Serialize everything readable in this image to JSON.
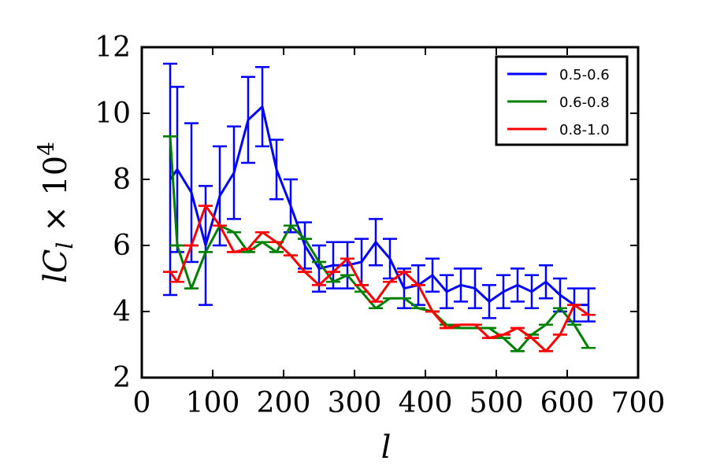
{
  "chart_data": {
    "type": "line",
    "title": "",
    "xlabel": "l",
    "ylabel": "lC_l × 10^4",
    "ylabel_parts": {
      "main": "lC",
      "sub": "l",
      "times": " × 10",
      "sup": "4"
    },
    "xlim": [
      0,
      700
    ],
    "ylim": [
      2,
      12
    ],
    "x_ticks": [
      0,
      100,
      200,
      300,
      400,
      500,
      600,
      700
    ],
    "y_ticks": [
      2,
      4,
      6,
      8,
      10,
      12
    ],
    "grid": false,
    "legend_position": "top-right",
    "x": [
      40,
      50,
      70,
      90,
      110,
      130,
      150,
      170,
      190,
      210,
      230,
      250,
      270,
      290,
      310,
      330,
      350,
      370,
      390,
      410,
      430,
      450,
      470,
      490,
      510,
      530,
      550,
      570,
      590,
      610,
      630
    ],
    "series": [
      {
        "name": "0.5-0.6",
        "color": "#0000ff",
        "x": [
          40,
          50,
          70,
          90,
          110,
          130,
          150,
          170,
          190,
          210,
          230,
          250,
          270,
          290,
          310,
          330,
          350,
          370,
          390,
          410,
          430,
          450,
          470,
          490,
          510,
          530,
          550,
          570,
          590,
          610,
          630
        ],
        "values": [
          8.0,
          8.3,
          7.6,
          6.0,
          7.5,
          8.2,
          9.8,
          10.2,
          8.3,
          7.2,
          6.0,
          5.3,
          5.4,
          5.4,
          5.5,
          6.1,
          5.6,
          4.7,
          4.8,
          5.1,
          4.6,
          4.8,
          4.7,
          4.3,
          4.6,
          4.8,
          4.6,
          4.9,
          4.5,
          4.2,
          4.2
        ],
        "errors": [
          3.5,
          2.5,
          2.1,
          1.8,
          1.5,
          1.4,
          1.3,
          1.2,
          0.9,
          0.8,
          0.7,
          0.7,
          0.7,
          0.7,
          0.7,
          0.7,
          0.6,
          0.6,
          0.6,
          0.5,
          0.5,
          0.5,
          0.6,
          0.5,
          0.5,
          0.5,
          0.5,
          0.5,
          0.5,
          0.5,
          0.5
        ]
      },
      {
        "name": "0.6-0.8",
        "color": "#008000",
        "x": [
          40,
          50,
          70,
          90,
          110,
          130,
          150,
          170,
          190,
          210,
          230,
          250,
          270,
          290,
          310,
          330,
          350,
          370,
          390,
          410,
          430,
          450,
          470,
          490,
          510,
          530,
          550,
          570,
          590,
          610,
          630
        ],
        "values": [
          9.3,
          6.0,
          4.7,
          5.8,
          6.6,
          6.4,
          5.8,
          6.1,
          5.8,
          6.6,
          6.2,
          5.5,
          4.9,
          5.1,
          4.6,
          4.1,
          4.4,
          4.4,
          4.1,
          4.0,
          3.6,
          3.5,
          3.5,
          3.5,
          3.2,
          2.8,
          3.3,
          3.6,
          4.1,
          3.6,
          2.9
        ]
      },
      {
        "name": "0.8-1.0",
        "color": "#ff0000",
        "x": [
          40,
          50,
          70,
          90,
          110,
          130,
          150,
          170,
          190,
          210,
          230,
          250,
          270,
          290,
          310,
          330,
          350,
          370,
          390,
          410,
          430,
          450,
          470,
          490,
          510,
          530,
          550,
          570,
          590,
          610,
          630
        ],
        "values": [
          5.2,
          4.9,
          6.0,
          7.2,
          6.6,
          5.8,
          5.9,
          6.4,
          6.1,
          5.7,
          5.2,
          4.8,
          5.2,
          5.6,
          4.8,
          4.3,
          4.9,
          5.2,
          4.8,
          4.0,
          3.5,
          3.6,
          3.6,
          3.2,
          3.3,
          3.5,
          3.2,
          2.8,
          3.3,
          4.2,
          3.9
        ]
      }
    ]
  }
}
